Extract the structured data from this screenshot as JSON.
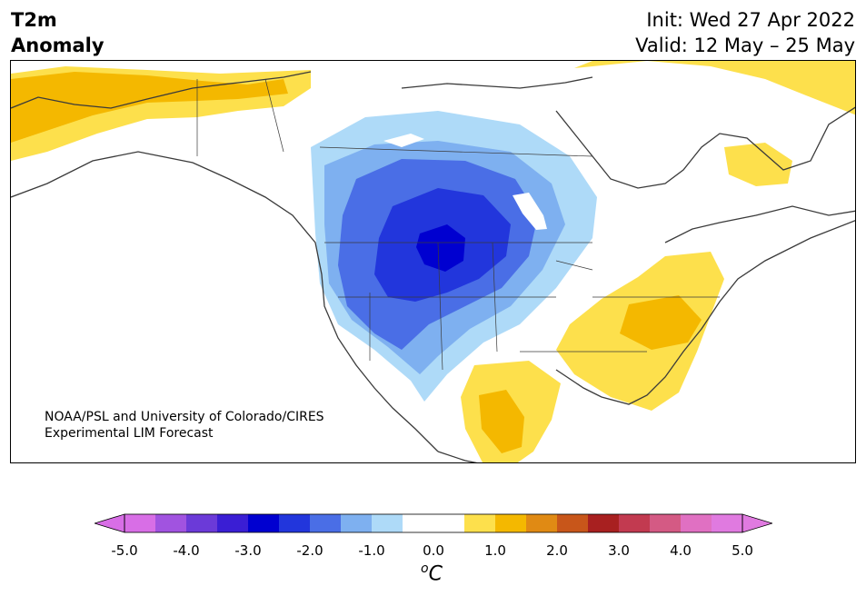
{
  "header": {
    "title_line1": "T2m",
    "title_line2": "Anomaly",
    "init": "Init: Wed 27 Apr 2022",
    "valid": "Valid: 12 May – 25 May"
  },
  "credit": {
    "line1": "NOAA/PSL and University of Colorado/CIRES",
    "line2": "Experimental LIM Forecast"
  },
  "colorbar": {
    "units_prefix": "o",
    "units": "C",
    "tick_labels": [
      "-5.0",
      "-4.0",
      "-3.0",
      "-2.0",
      "-1.0",
      "0.0",
      "1.0",
      "2.0",
      "3.0",
      "4.0",
      "5.0"
    ],
    "range": [
      -5.0,
      5.0
    ],
    "colors": [
      "#d86ee6",
      "#a153e0",
      "#6b3ad8",
      "#3a1ed4",
      "#0000d0",
      "#2236dc",
      "#4a6ee6",
      "#7eb0f0",
      "#aedaf8",
      "#ffffff",
      "#ffffff",
      "#fde04c",
      "#f4b800",
      "#e08a14",
      "#c8561a",
      "#a82020",
      "#c23a50",
      "#d45a84",
      "#e070c2",
      "#e07ae0"
    ]
  },
  "map": {
    "colors": {
      "coast": "#3a3a3a",
      "cold_light": "#aedaf8",
      "cold_mid": "#7eb0f0",
      "cold_strong": "#4a6ee6",
      "cold_deep": "#2236dc",
      "cold_core": "#0000d0",
      "warm_light": "#fde04c",
      "warm_mid": "#f4b800"
    }
  }
}
